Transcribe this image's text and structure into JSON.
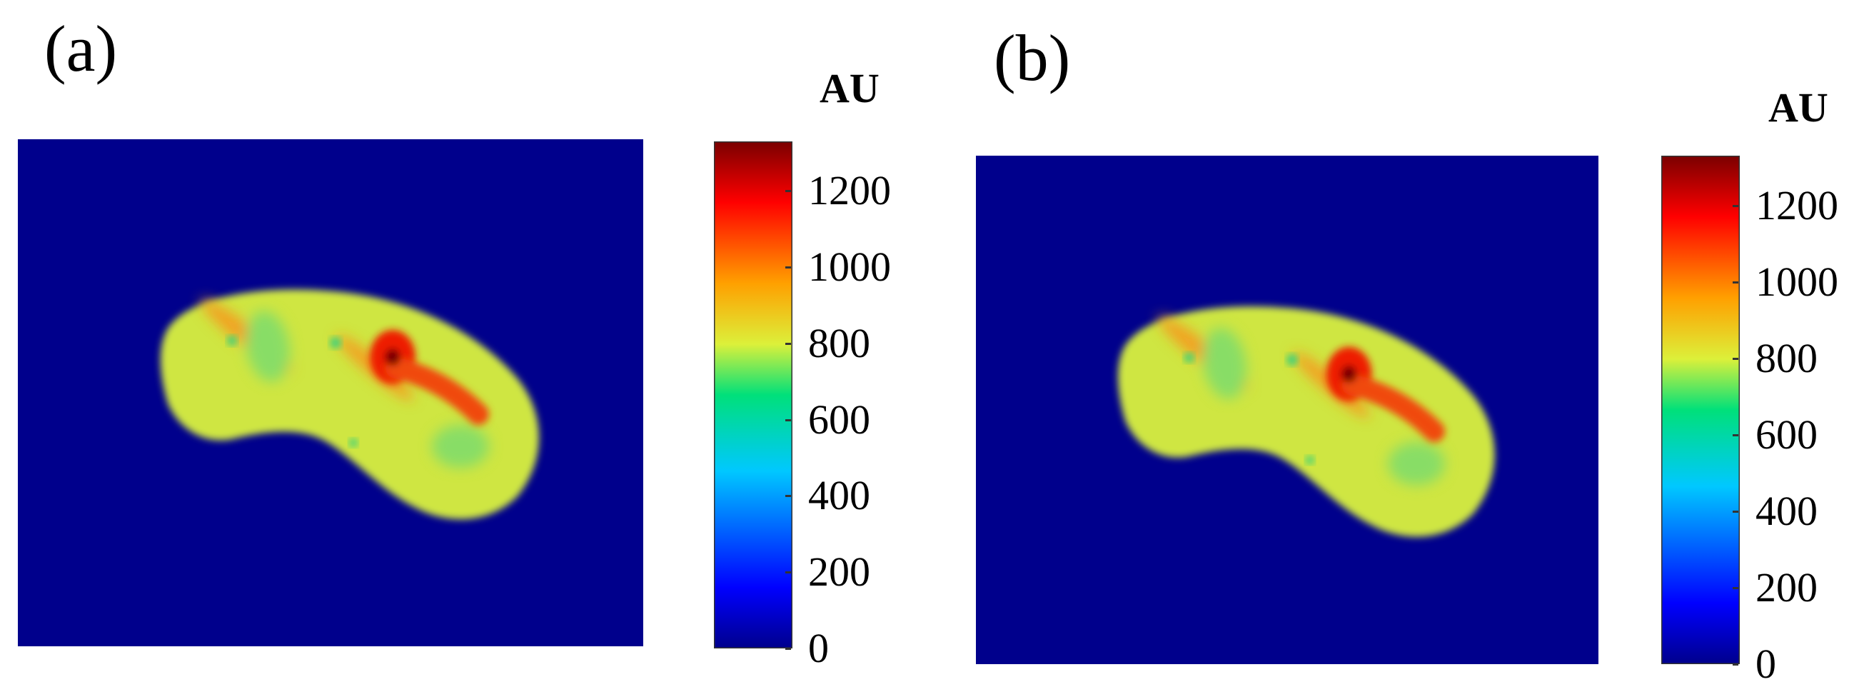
{
  "figure": {
    "panels": [
      {
        "label": "(a)",
        "colorbar": {
          "unit_label": "AU",
          "min": 0,
          "max": 1330,
          "ticks": [
            "0",
            "200",
            "400",
            "600",
            "800",
            "1000",
            "1200"
          ],
          "tick_values": [
            0,
            200,
            400,
            600,
            800,
            1000,
            1200
          ]
        }
      },
      {
        "label": "(b)",
        "colorbar": {
          "unit_label": "AU",
          "min": 0,
          "max": 1330,
          "ticks": [
            "0",
            "200",
            "400",
            "600",
            "800",
            "1000",
            "1200"
          ],
          "tick_values": [
            0,
            200,
            400,
            600,
            800,
            1000,
            1200
          ]
        }
      }
    ],
    "colormap": "jet",
    "colors": {
      "background": "#00008c",
      "tissue": "#cfe642",
      "hotspot": "#ee1a00",
      "core": "#7a0000"
    }
  }
}
